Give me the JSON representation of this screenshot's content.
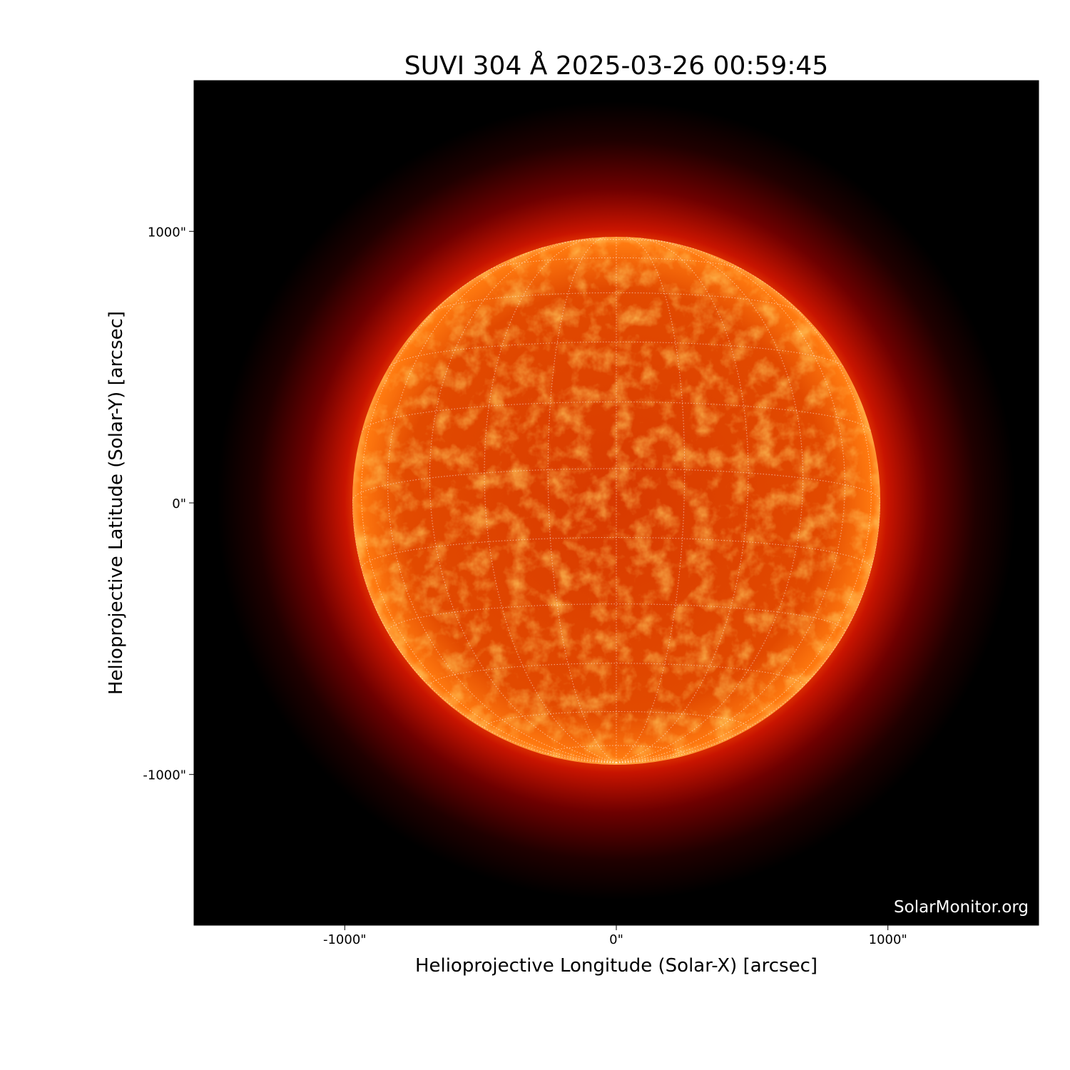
{
  "chart_data": {
    "type": "image",
    "title": "SUVI 304 Å 2025-03-26 00:59:45",
    "xlabel": "Helioprojective Longitude (Solar-X) [arcsec]",
    "ylabel": "Helioprojective Latitude (Solar-Y) [arcsec]",
    "xlim": [
      -1555,
      1555
    ],
    "ylim": [
      -1555,
      1555
    ],
    "x_ticks": [
      -1000,
      0,
      1000
    ],
    "y_ticks": [
      1000,
      0,
      -1000
    ],
    "x_tick_labels": [
      "-1000\"",
      "0\"",
      "1000\""
    ],
    "y_tick_labels": [
      "1000\"",
      "0\"",
      "-1000\""
    ],
    "solar_radius_arcsec": 970,
    "grid": "heliographic lat/lon, 15° spacing, dotted white",
    "colormap": "red-orange-white (SDO/SUVI 304)",
    "background_color": "#000000",
    "watermark": "SolarMonitor.org"
  }
}
